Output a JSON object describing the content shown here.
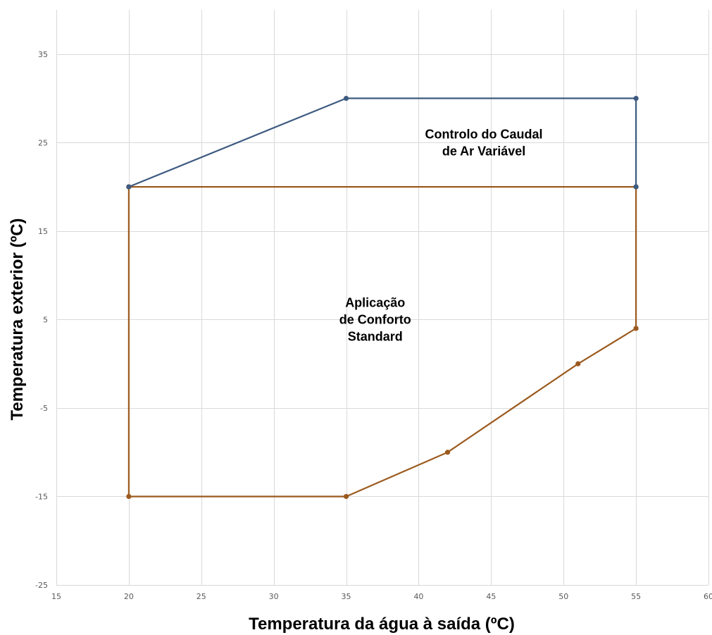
{
  "chart_data": {
    "type": "line",
    "xlabel": "Temperatura da água à saída (ºC)",
    "ylabel": "Temperatura exterior (ºC)",
    "xlim": [
      15,
      60
    ],
    "ylim": [
      -25,
      40
    ],
    "x_ticks": [
      15,
      20,
      25,
      30,
      35,
      40,
      45,
      50,
      55,
      60
    ],
    "y_ticks": [
      -25,
      -15,
      -5,
      5,
      15,
      25,
      35
    ],
    "grid": true,
    "legend": "none",
    "series": [
      {
        "color": "#3d5a80",
        "points": [
          {
            "x": 20,
            "y": 20
          },
          {
            "x": 35,
            "y": 30
          },
          {
            "x": 55,
            "y": 30
          },
          {
            "x": 55,
            "y": 20
          }
        ]
      },
      {
        "color": "#9c5a1e",
        "points": [
          {
            "x": 20,
            "y": 20
          },
          {
            "x": 55,
            "y": 20
          },
          {
            "x": 55,
            "y": 4
          },
          {
            "x": 51,
            "y": 0
          },
          {
            "x": 42,
            "y": -10
          },
          {
            "x": 35,
            "y": -15
          },
          {
            "x": 20,
            "y": -15
          },
          {
            "x": 20,
            "y": 20
          }
        ]
      }
    ],
    "annotations": [
      {
        "lines": [
          "Controlo do Caudal",
          "de Ar Variável"
        ],
        "x": 44.5,
        "y": 25
      },
      {
        "lines": [
          "Aplicação",
          "de Conforto",
          "Standard"
        ],
        "x": 37,
        "y": 5
      }
    ]
  }
}
